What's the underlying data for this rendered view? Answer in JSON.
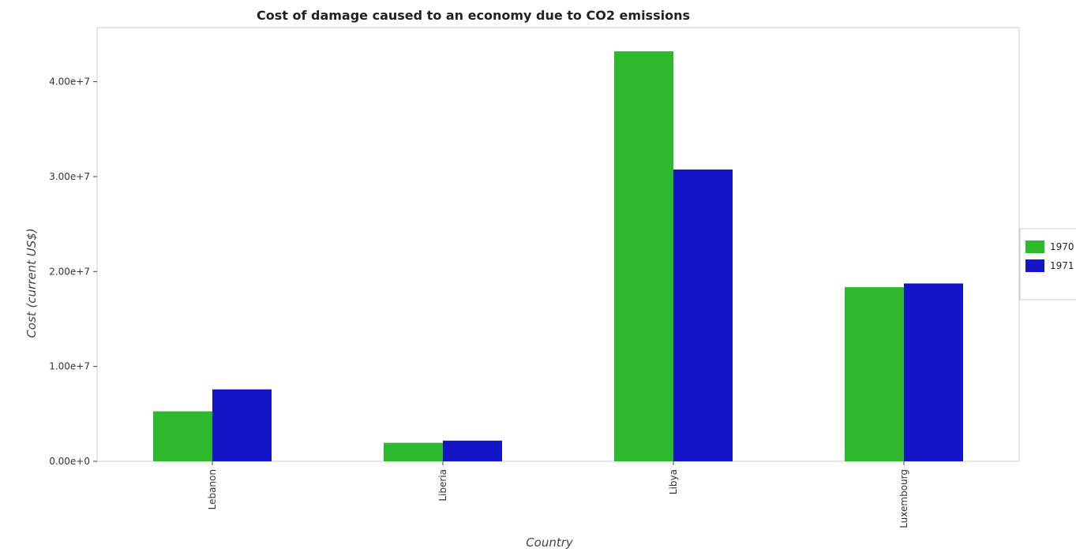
{
  "chart_data": {
    "type": "bar",
    "title": "Cost of damage caused to an economy due to CO2 emissions",
    "xlabel": "Country",
    "ylabel": "Cost (current US$)",
    "categories": [
      "Lebanon",
      "Liberia",
      "Libya",
      "Luxembourg"
    ],
    "series": [
      {
        "name": "1970",
        "color": "#2db82d",
        "values": [
          5270000,
          1950000,
          43200000,
          18350000
        ]
      },
      {
        "name": "1971",
        "color": "#1414c8",
        "values": [
          7580000,
          2180000,
          30750000,
          18740000
        ]
      }
    ],
    "ylim": [
      0,
      45700000
    ],
    "yticks": [
      0,
      10000000,
      20000000,
      30000000,
      40000000
    ],
    "ytick_labels": [
      "0.00e+0",
      "1.00e+7",
      "2.00e+7",
      "3.00e+7",
      "4.00e+7"
    ],
    "grid": false,
    "legend": "right"
  }
}
